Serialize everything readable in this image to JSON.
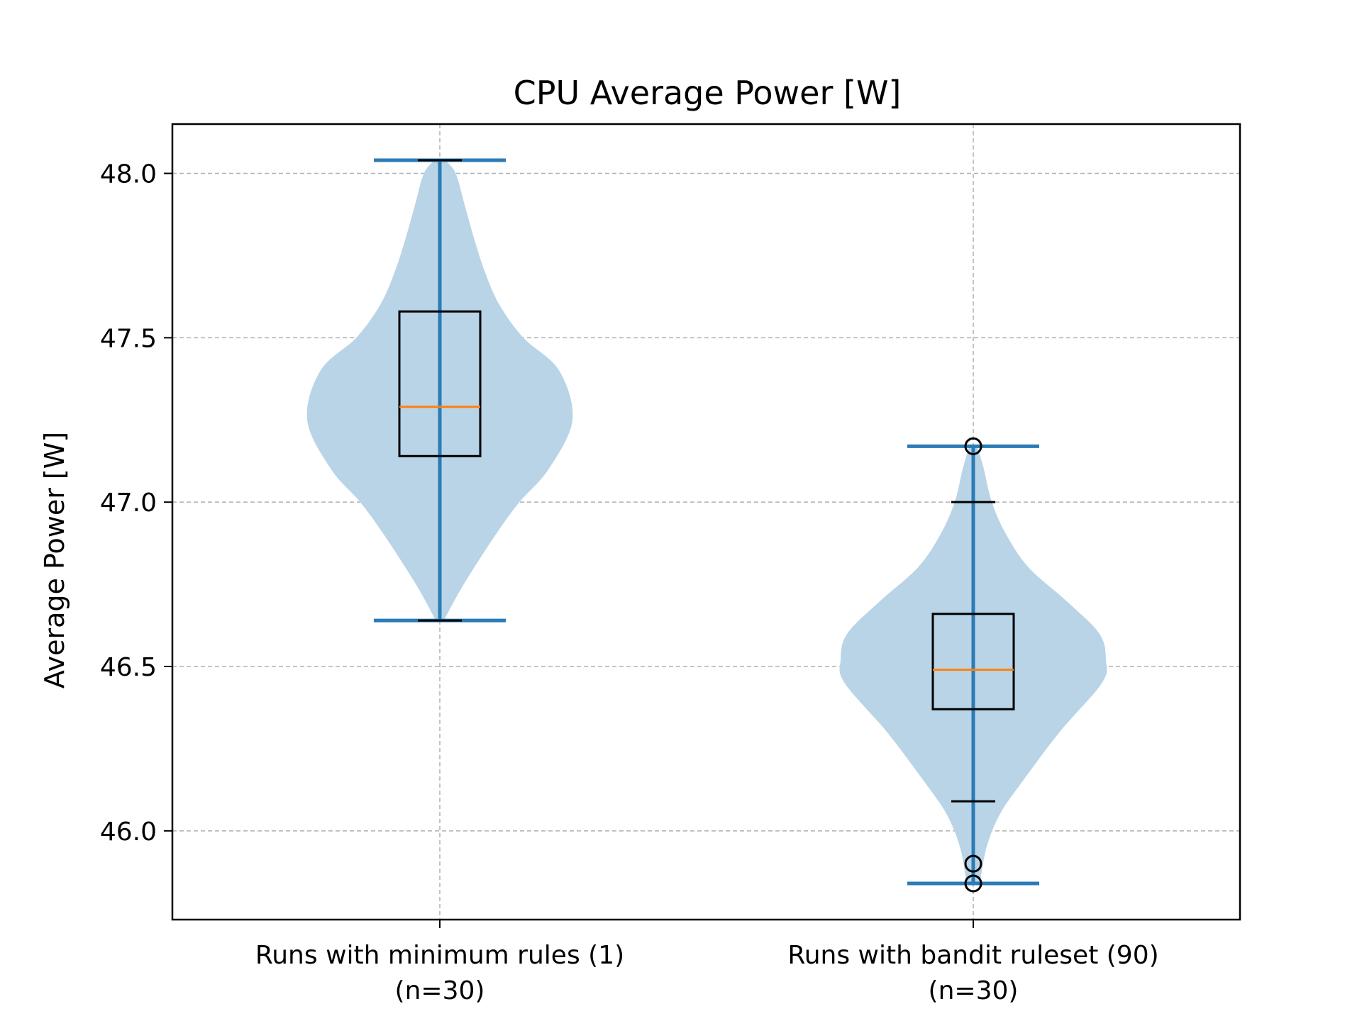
{
  "chart_data": {
    "type": "violin",
    "title": "CPU Average Power [W]",
    "xlabel": "",
    "ylabel": "Average Power [W]",
    "ylim": [
      45.73,
      48.15
    ],
    "yticks": [
      "46.0",
      "46.5",
      "47.0",
      "47.5",
      "48.0"
    ],
    "grid": true,
    "categories": [
      [
        "Runs with minimum rules (1)",
        "(n=30)"
      ],
      [
        "Runs with bandit ruleset (90)",
        "(n=30)"
      ]
    ],
    "colors": {
      "violin_fill": "#b9d4e7",
      "violin_lines": "#2a7bb6",
      "median": "#ff7f0e",
      "box": "#000000",
      "grid": "#b0b0b0"
    },
    "groups": [
      {
        "min": 46.64,
        "max": 48.04,
        "box": {
          "q1": 47.14,
          "median": 47.29,
          "q3": 47.58,
          "whisker_low": 46.64,
          "whisker_high": 48.04
        },
        "outliers": [],
        "density": [
          [
            46.64,
            0.03
          ],
          [
            46.75,
            0.18
          ],
          [
            46.9,
            0.42
          ],
          [
            47.0,
            0.6
          ],
          [
            47.1,
            0.82
          ],
          [
            47.25,
            1.0
          ],
          [
            47.4,
            0.9
          ],
          [
            47.5,
            0.63
          ],
          [
            47.6,
            0.45
          ],
          [
            47.7,
            0.34
          ],
          [
            47.8,
            0.26
          ],
          [
            47.9,
            0.19
          ],
          [
            48.0,
            0.12
          ],
          [
            48.04,
            0.04
          ]
        ]
      },
      {
        "min": 45.84,
        "max": 47.17,
        "box": {
          "q1": 46.37,
          "median": 46.49,
          "q3": 46.66,
          "whisker_low": 46.09,
          "whisker_high": 47.0
        },
        "outliers": [
          47.17,
          45.9,
          45.84
        ],
        "density": [
          [
            45.84,
            0.05
          ],
          [
            45.95,
            0.1
          ],
          [
            46.05,
            0.2
          ],
          [
            46.15,
            0.37
          ],
          [
            46.3,
            0.65
          ],
          [
            46.45,
            0.97
          ],
          [
            46.52,
            1.0
          ],
          [
            46.6,
            0.95
          ],
          [
            46.7,
            0.7
          ],
          [
            46.8,
            0.42
          ],
          [
            46.9,
            0.25
          ],
          [
            47.0,
            0.14
          ],
          [
            47.1,
            0.08
          ],
          [
            47.17,
            0.03
          ]
        ]
      }
    ]
  }
}
